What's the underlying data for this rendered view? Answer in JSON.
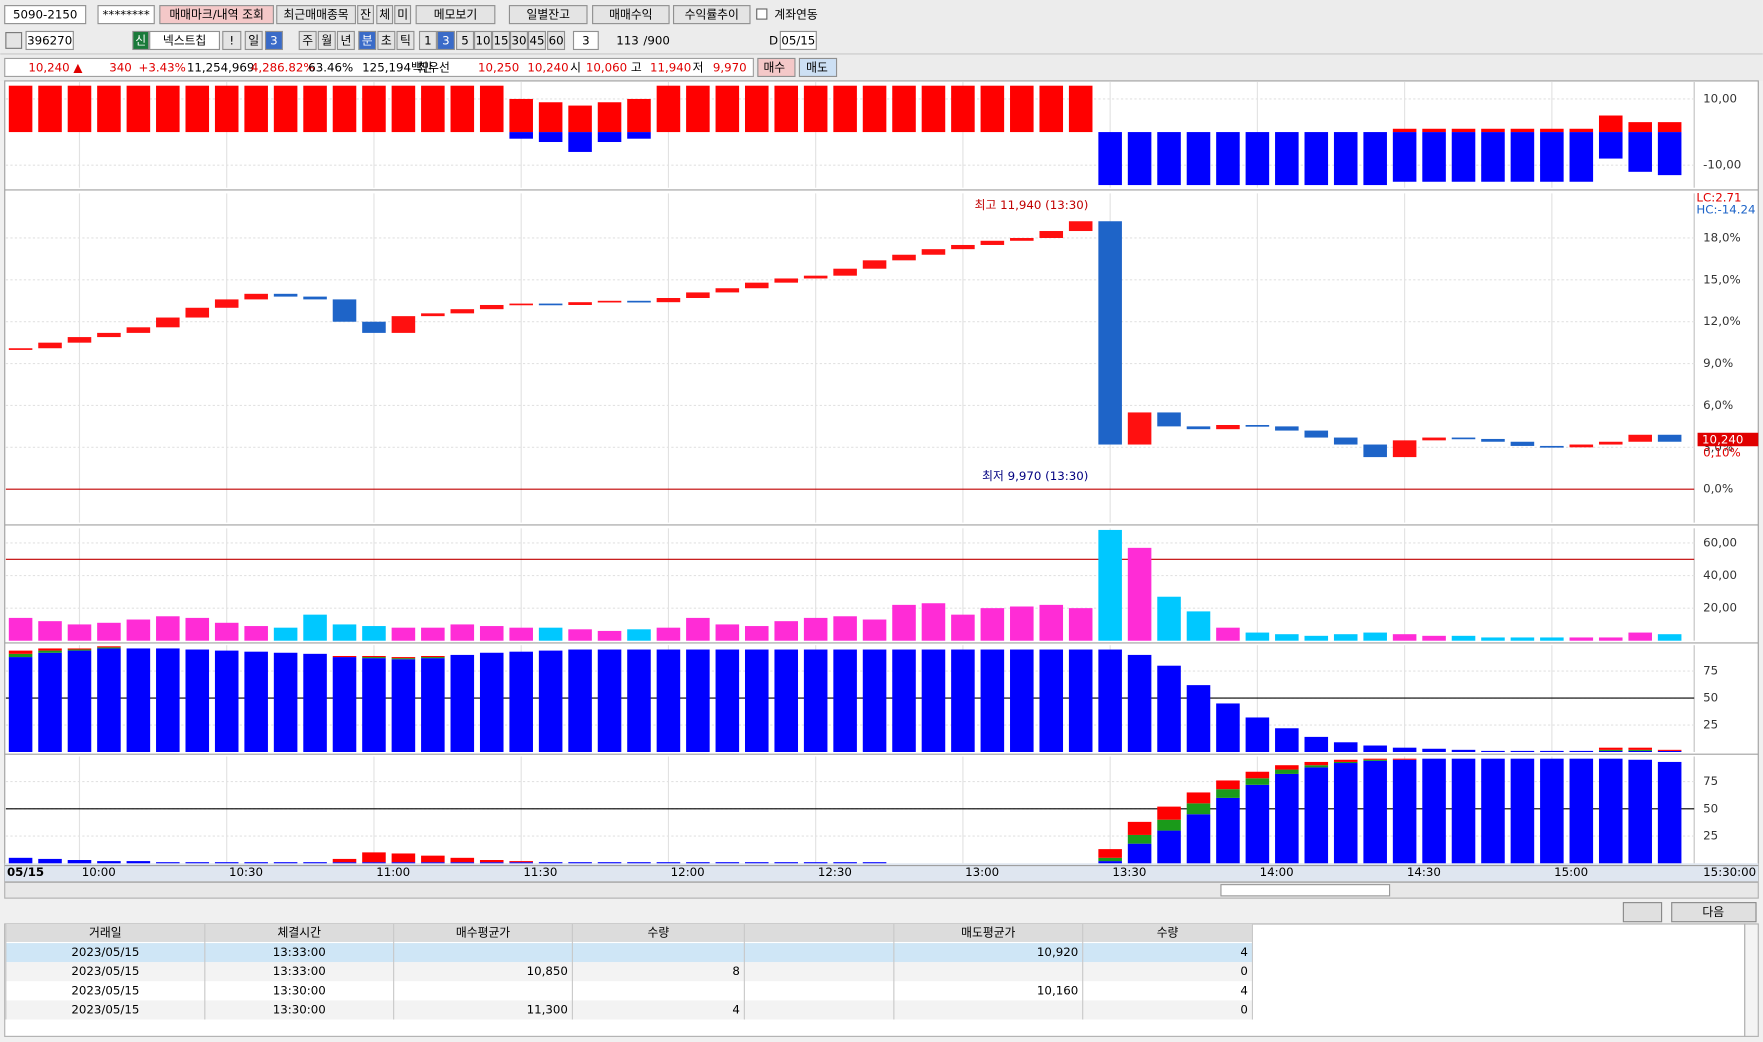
{
  "toolbar": {
    "account": [
      "5090-2150",
      "********",
      "매매마크/내역 조회",
      "최근매매종목",
      "잔",
      "체",
      "미",
      "메모보기",
      "일별잔고",
      "매매수익",
      "수익률추이",
      "계좌연동"
    ],
    "stock": [
      "396270",
      "신",
      "넥스트칩",
      "!",
      "일",
      "3",
      "주",
      "월",
      "년",
      "분",
      "초",
      "틱",
      "1",
      "3",
      "5",
      "10",
      "15",
      "30",
      "45",
      "60",
      "3",
      "113",
      "/900",
      "D",
      "05/15"
    ],
    "quote": [
      "10,240 ▲",
      "340",
      "+3.43%",
      "11,254,969",
      "4,286.82%",
      "63.46%",
      "125,194백만",
      "최우선",
      "10,250",
      "10,240",
      "시",
      "10,060",
      "고",
      "11,940",
      "저",
      "9,970",
      "매수",
      "매도"
    ]
  },
  "chart_data": [
    {
      "type": "bar",
      "xlim": [
        585,
        929
      ],
      "ylim": [
        -16.8,
        15.1
      ],
      "yticks": [
        {
          "value": 10,
          "label": "10,00"
        },
        {
          "value": -10,
          "label": "-10,00"
        }
      ],
      "x": [
        588,
        594,
        600,
        606,
        612,
        618,
        624,
        630,
        636,
        642,
        648,
        654,
        660,
        666,
        672,
        678,
        684,
        690,
        696,
        702,
        708,
        714,
        720,
        726,
        732,
        738,
        744,
        750,
        756,
        762,
        768,
        774,
        780,
        786,
        792,
        798,
        804,
        810,
        816,
        822,
        828,
        834,
        840,
        846,
        852,
        858,
        864,
        870,
        876,
        882,
        888,
        894,
        900,
        906,
        912,
        918,
        924
      ],
      "series": [
        {
          "color": "#ff0000",
          "values": [
            14,
            14,
            14,
            14,
            14,
            14,
            14,
            14,
            14,
            14,
            14,
            14,
            14,
            14,
            14,
            14,
            14,
            10,
            9,
            8,
            9,
            10,
            14,
            14,
            14,
            14,
            14,
            14,
            14,
            14,
            14,
            14,
            14,
            14,
            14,
            14,
            14,
            0,
            0,
            0,
            0,
            0,
            0,
            0,
            0,
            0,
            0,
            1,
            1,
            1,
            1,
            1,
            1,
            1,
            5,
            3,
            3
          ]
        },
        {
          "color": "#0000ff",
          "values": [
            0,
            0,
            0,
            0,
            0,
            0,
            0,
            0,
            0,
            0,
            0,
            0,
            0,
            0,
            0,
            0,
            0,
            -2,
            -3,
            -6,
            -3,
            -2,
            0,
            0,
            0,
            0,
            0,
            0,
            0,
            0,
            0,
            0,
            0,
            0,
            0,
            0,
            0,
            -16,
            -16,
            -16,
            -16,
            -16,
            -16,
            -16,
            -16,
            -16,
            -16,
            -15,
            -15,
            -15,
            -15,
            -15,
            -15,
            -15,
            -8,
            -12,
            -13
          ]
        }
      ]
    },
    {
      "type": "candlestick",
      "xlim": [
        585,
        929
      ],
      "ylim": [
        -2.4,
        21.2
      ],
      "yticks": [
        {
          "value": 0,
          "label": "0,0%"
        },
        {
          "value": 3,
          "label": "3,0%"
        },
        {
          "value": 6,
          "label": "6,0%"
        },
        {
          "value": 9,
          "label": "9,0%"
        },
        {
          "value": 12,
          "label": "12,0%"
        },
        {
          "value": 15,
          "label": "15,0%"
        },
        {
          "value": 18,
          "label": "18,0%"
        }
      ],
      "up_color": "#ff1010",
      "down_color": "#1e64c8",
      "x": [
        588,
        594,
        600,
        606,
        612,
        618,
        624,
        630,
        636,
        642,
        648,
        654,
        660,
        666,
        672,
        678,
        684,
        690,
        696,
        702,
        708,
        714,
        720,
        726,
        732,
        738,
        744,
        750,
        756,
        762,
        768,
        774,
        780,
        786,
        792,
        798,
        804,
        810,
        816,
        822,
        828,
        834,
        840,
        846,
        852,
        858,
        864,
        870,
        876,
        882,
        888,
        894,
        900,
        906,
        912,
        918,
        924
      ],
      "values": [
        10.1,
        10.5,
        10.9,
        11.2,
        11.6,
        12.3,
        13.0,
        13.6,
        14.0,
        13.8,
        13.6,
        12.0,
        11.2,
        12.4,
        12.6,
        12.9,
        13.2,
        13.3,
        13.2,
        13.4,
        13.5,
        13.4,
        13.7,
        14.1,
        14.4,
        14.8,
        15.1,
        15.3,
        15.8,
        16.4,
        16.8,
        17.2,
        17.5,
        17.8,
        18.0,
        18.5,
        19.2,
        3.2,
        5.5,
        4.5,
        4.3,
        4.6,
        4.5,
        4.2,
        3.7,
        3.2,
        2.3,
        3.5,
        3.7,
        3.6,
        3.4,
        3.1,
        3.0,
        3.2,
        3.4,
        3.9,
        3.4
      ],
      "annotations": {
        "high": "최고 11,940 (13:30)",
        "low": "최저 9,970 (13:30)",
        "lc": "LC:2.71",
        "hc": "HC:-14.24",
        "price": "10,240",
        "change": "0,10%"
      }
    },
    {
      "type": "bar",
      "xlim": [
        585,
        929
      ],
      "ylim": [
        0,
        69
      ],
      "yticks": [
        {
          "value": 20,
          "label": "20,00"
        },
        {
          "value": 40,
          "label": "40,00"
        },
        {
          "value": 60,
          "label": "60,00"
        }
      ],
      "hline": 50,
      "up_color": "#ff2cd6",
      "down_color": "#00c8ff",
      "x": [
        588,
        594,
        600,
        606,
        612,
        618,
        624,
        630,
        636,
        642,
        648,
        654,
        660,
        666,
        672,
        678,
        684,
        690,
        696,
        702,
        708,
        714,
        720,
        726,
        732,
        738,
        744,
        750,
        756,
        762,
        768,
        774,
        780,
        786,
        792,
        798,
        804,
        810,
        816,
        822,
        828,
        834,
        840,
        846,
        852,
        858,
        864,
        870,
        876,
        882,
        888,
        894,
        900,
        906,
        912,
        918,
        924
      ],
      "series": [
        {
          "values": [
            14,
            12,
            10,
            11,
            13,
            15,
            14,
            11,
            9,
            8,
            16,
            10,
            9,
            8,
            8,
            10,
            9,
            8,
            8,
            7,
            6,
            7,
            8,
            14,
            10,
            9,
            12,
            14,
            15,
            13,
            22,
            23,
            16,
            20,
            21,
            22,
            20,
            68,
            57,
            27,
            18,
            8,
            5,
            4,
            3,
            4,
            5,
            4,
            3,
            3,
            2,
            2,
            2,
            2,
            2,
            5,
            4
          ]
        }
      ]
    },
    {
      "type": "bar",
      "xlim": [
        585,
        929
      ],
      "ylim": [
        0,
        99
      ],
      "yticks": [
        25,
        50,
        75
      ],
      "hline": 50,
      "x": [
        588,
        594,
        600,
        606,
        612,
        618,
        624,
        630,
        636,
        642,
        648,
        654,
        660,
        666,
        672,
        678,
        684,
        690,
        696,
        702,
        708,
        714,
        720,
        726,
        732,
        738,
        744,
        750,
        756,
        762,
        768,
        774,
        780,
        786,
        792,
        798,
        804,
        810,
        816,
        822,
        828,
        834,
        840,
        846,
        852,
        858,
        864,
        870,
        876,
        882,
        888,
        894,
        900,
        906,
        912,
        918,
        924
      ],
      "series": [
        {
          "color": "#0000ff",
          "values": [
            88,
            92,
            94,
            96,
            96,
            96,
            95,
            94,
            93,
            92,
            91,
            88,
            87,
            86,
            87,
            90,
            92,
            93,
            94,
            95,
            95,
            95,
            95,
            95,
            95,
            95,
            95,
            95,
            95,
            95,
            95,
            95,
            95,
            95,
            95,
            95,
            95,
            95,
            90,
            80,
            62,
            45,
            32,
            22,
            14,
            9,
            6,
            4,
            3,
            2,
            1,
            1,
            1,
            1,
            1,
            1,
            1
          ]
        },
        {
          "color": "#1a9a1a",
          "values": [
            3,
            2,
            1,
            1,
            0,
            0,
            0,
            0,
            0,
            0,
            0,
            0,
            1,
            1,
            1,
            0,
            0,
            0,
            0,
            0,
            0,
            0,
            0,
            0,
            0,
            0,
            0,
            0,
            0,
            0,
            0,
            0,
            0,
            0,
            0,
            0,
            0,
            0,
            0,
            0,
            0,
            0,
            0,
            0,
            0,
            0,
            0,
            0,
            0,
            0,
            0,
            0,
            0,
            0,
            1,
            1,
            0
          ]
        },
        {
          "color": "#ff0000",
          "values": [
            3,
            2,
            1,
            1,
            0,
            0,
            0,
            0,
            0,
            0,
            0,
            1,
            1,
            1,
            1,
            0,
            0,
            0,
            0,
            0,
            0,
            0,
            0,
            0,
            0,
            0,
            0,
            0,
            0,
            0,
            0,
            0,
            0,
            0,
            0,
            0,
            0,
            0,
            0,
            0,
            0,
            0,
            0,
            0,
            0,
            0,
            0,
            0,
            0,
            0,
            0,
            0,
            0,
            0,
            2,
            2,
            1
          ]
        }
      ]
    },
    {
      "type": "bar",
      "xlim": [
        585,
        929
      ],
      "ylim": [
        0,
        98
      ],
      "yticks": [
        25,
        50,
        75
      ],
      "hline": 50,
      "xticks": [
        {
          "value": 600,
          "label": "10:00"
        },
        {
          "value": 630,
          "label": "10:30"
        },
        {
          "value": 660,
          "label": "11:00"
        },
        {
          "value": 690,
          "label": "11:30"
        },
        {
          "value": 720,
          "label": "12:00"
        },
        {
          "value": 750,
          "label": "12:30"
        },
        {
          "value": 780,
          "label": "13:00"
        },
        {
          "value": 810,
          "label": "13:30"
        },
        {
          "value": 840,
          "label": "14:00"
        },
        {
          "value": 870,
          "label": "14:30"
        },
        {
          "value": 900,
          "label": "15:00"
        }
      ],
      "x_start_label": "05/15",
      "x_end_label": "15:30:00",
      "x": [
        588,
        594,
        600,
        606,
        612,
        618,
        624,
        630,
        636,
        642,
        648,
        654,
        660,
        666,
        672,
        678,
        684,
        690,
        696,
        702,
        708,
        714,
        720,
        726,
        732,
        738,
        744,
        750,
        756,
        762,
        768,
        774,
        780,
        786,
        792,
        798,
        804,
        810,
        816,
        822,
        828,
        834,
        840,
        846,
        852,
        858,
        864,
        870,
        876,
        882,
        888,
        894,
        900,
        906,
        912,
        918,
        924
      ],
      "series": [
        {
          "color": "#0000ff",
          "values": [
            5,
            4,
            3,
            2,
            2,
            1,
            1,
            1,
            1,
            1,
            1,
            1,
            1,
            1,
            1,
            1,
            1,
            1,
            1,
            1,
            1,
            1,
            1,
            1,
            1,
            1,
            1,
            1,
            1,
            1,
            0,
            0,
            0,
            0,
            0,
            0,
            0,
            2,
            18,
            30,
            45,
            60,
            72,
            82,
            88,
            92,
            94,
            95,
            96,
            96,
            96,
            96,
            96,
            96,
            96,
            95,
            93
          ]
        },
        {
          "color": "#1a9a1a",
          "values": [
            0,
            0,
            0,
            0,
            0,
            0,
            0,
            0,
            0,
            0,
            0,
            0,
            0,
            0,
            0,
            0,
            0,
            0,
            0,
            0,
            0,
            0,
            0,
            0,
            0,
            0,
            0,
            0,
            0,
            0,
            0,
            0,
            0,
            0,
            0,
            0,
            0,
            3,
            8,
            10,
            10,
            8,
            6,
            4,
            2,
            1,
            1,
            0,
            0,
            0,
            0,
            0,
            0,
            0,
            0,
            0,
            0
          ]
        },
        {
          "color": "#ff0000",
          "values": [
            0,
            0,
            0,
            0,
            0,
            0,
            0,
            0,
            0,
            0,
            0,
            3,
            9,
            8,
            6,
            4,
            2,
            1,
            0,
            0,
            0,
            0,
            0,
            0,
            0,
            0,
            0,
            0,
            0,
            0,
            0,
            0,
            0,
            0,
            0,
            0,
            0,
            8,
            12,
            12,
            10,
            8,
            6,
            4,
            3,
            2,
            1,
            1,
            0,
            0,
            0,
            0,
            0,
            0,
            0,
            0,
            0
          ]
        }
      ]
    }
  ],
  "table": {
    "headers": [
      "거래일",
      "체결시간",
      "매수평균가",
      "수량",
      null,
      "매도평균가",
      "수량"
    ],
    "rows": [
      [
        "2023/05/15",
        "13:33:00",
        null,
        null,
        null,
        "10,920",
        "4"
      ],
      [
        "2023/05/15",
        "13:33:00",
        "10,850",
        "8",
        null,
        null,
        "0"
      ],
      [
        "2023/05/15",
        "13:30:00",
        null,
        null,
        null,
        "10,160",
        "4"
      ],
      [
        "2023/05/15",
        "13:30:00",
        "11,300",
        "4",
        null,
        null,
        "0"
      ]
    ]
  },
  "footer": {
    "next": "다음"
  }
}
